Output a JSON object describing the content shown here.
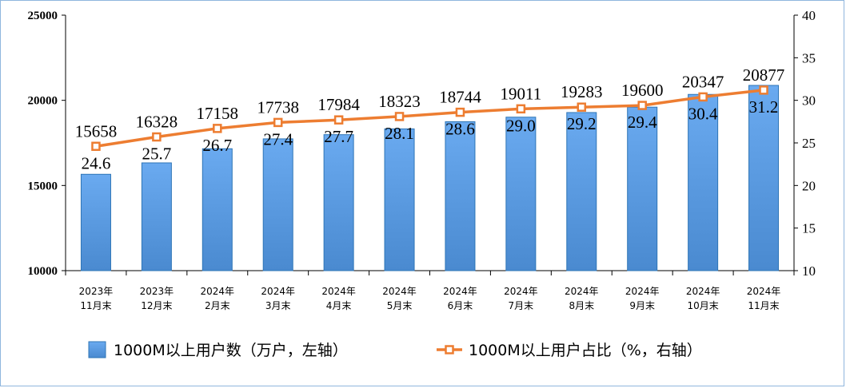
{
  "chart_data": {
    "type": "bar",
    "categories": [
      [
        "2023年",
        "11月末"
      ],
      [
        "2023年",
        "12月末"
      ],
      [
        "2024年",
        "2月末"
      ],
      [
        "2024年",
        "3月末"
      ],
      [
        "2024年",
        "4月末"
      ],
      [
        "2024年",
        "5月末"
      ],
      [
        "2024年",
        "6月末"
      ],
      [
        "2024年",
        "7月末"
      ],
      [
        "2024年",
        "8月末"
      ],
      [
        "2024年",
        "9月末"
      ],
      [
        "2024年",
        "10月末"
      ],
      [
        "2024年",
        "11月末"
      ]
    ],
    "series": [
      {
        "name": "1000M以上用户数（万户，左轴）",
        "type": "bar",
        "axis": "left",
        "values": [
          15658,
          16328,
          17158,
          17738,
          17984,
          18323,
          18744,
          19011,
          19283,
          19600,
          20347,
          20877
        ],
        "labels": [
          "15658",
          "16328",
          "17158",
          "17738",
          "17984",
          "18323",
          "18744",
          "19011",
          "19283",
          "19600",
          "20347",
          "20877"
        ],
        "color": "#5b9bd5"
      },
      {
        "name": "1000M以上用户占比（%，右轴）",
        "type": "line",
        "axis": "right",
        "values": [
          24.6,
          25.7,
          26.7,
          27.4,
          27.7,
          28.1,
          28.6,
          29.0,
          29.2,
          29.4,
          30.4,
          31.2
        ],
        "labels": [
          "24.6",
          "25.7",
          "26.7",
          "27.4",
          "27.7",
          "28.1",
          "28.6",
          "29.0",
          "29.2",
          "29.4",
          "30.4",
          "31.2"
        ],
        "color": "#ed7d31"
      }
    ],
    "y_left": {
      "min": 10000,
      "max": 25000,
      "ticks": [
        "10000",
        "15000",
        "20000",
        "25000"
      ]
    },
    "y_right": {
      "min": 10,
      "max": 40,
      "ticks": [
        "10",
        "15",
        "20",
        "25",
        "30",
        "35",
        "40"
      ]
    },
    "grid": false,
    "legend": "bottom"
  }
}
